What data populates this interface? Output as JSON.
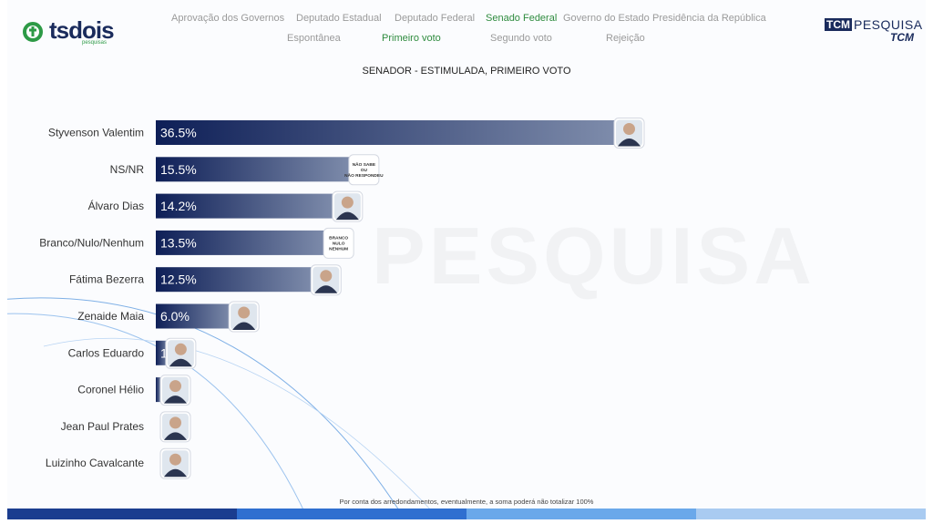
{
  "header": {
    "logo_text": "tsdois",
    "logo_sub": "pesquisas",
    "brand_box": "TCM",
    "brand_word": "PESQUISA",
    "brand_sub": "TCM"
  },
  "nav": {
    "row1": [
      {
        "label": "Aprovação dos Governos",
        "active": false
      },
      {
        "label": "Deputado Estadual",
        "active": false
      },
      {
        "label": "Deputado Federal",
        "active": false
      },
      {
        "label": "Senado Federal",
        "active": true
      },
      {
        "label": "Governo do Estado",
        "active": false
      },
      {
        "label": "Presidência da República",
        "active": false
      }
    ],
    "row2": [
      {
        "label": "Espontânea",
        "active": false
      },
      {
        "label": "Primeiro voto",
        "active": true
      },
      {
        "label": "Segundo voto",
        "active": false
      },
      {
        "label": "Rejeição",
        "active": false
      }
    ]
  },
  "watermark": "PESQUISA",
  "footnote": "Por conta dos arredondamentos, eventualmente, a soma poderá não totalizar 100%",
  "chart_data": {
    "type": "bar",
    "orientation": "horizontal",
    "title": "SENADOR - ESTIMULADA, PRIMEIRO VOTO",
    "categories": [
      "Styvenson Valentim",
      "NS/NR",
      "Álvaro Dias",
      "Branco/Nulo/Nenhum",
      "Fátima Bezerra",
      "Zenaide Maia",
      "Carlos Eduardo",
      "Coronel Hélio",
      "Jean Paul Prates",
      "Luizinho Cavalcante"
    ],
    "values": [
      36.5,
      15.5,
      14.2,
      13.5,
      12.5,
      6.0,
      1.0,
      0.4,
      0,
      0
    ],
    "labels": [
      "36.5%",
      "15.5%",
      "14.2%",
      "13.5%",
      "12.5%",
      "6.0%",
      "1",
      "",
      "",
      ""
    ],
    "badges": [
      "photo",
      "NÃO SABE OU NÃO RESPONDEU",
      "photo",
      "BRANCO NULO NENHUM",
      "photo",
      "photo",
      "photo",
      "photo",
      "photo",
      "photo"
    ],
    "xlim": [
      0,
      40
    ],
    "colors": {
      "bar_start": "#0e1f57",
      "bar_end": "#7e8cab",
      "text": "#333333"
    }
  },
  "colors": {
    "accent_green": "#2e8b3e",
    "navy": "#1a2b5c",
    "bottom_stripes": [
      "#1b3d8f",
      "#2f6fd0",
      "#6aa8ea",
      "#a9cbf1"
    ]
  }
}
